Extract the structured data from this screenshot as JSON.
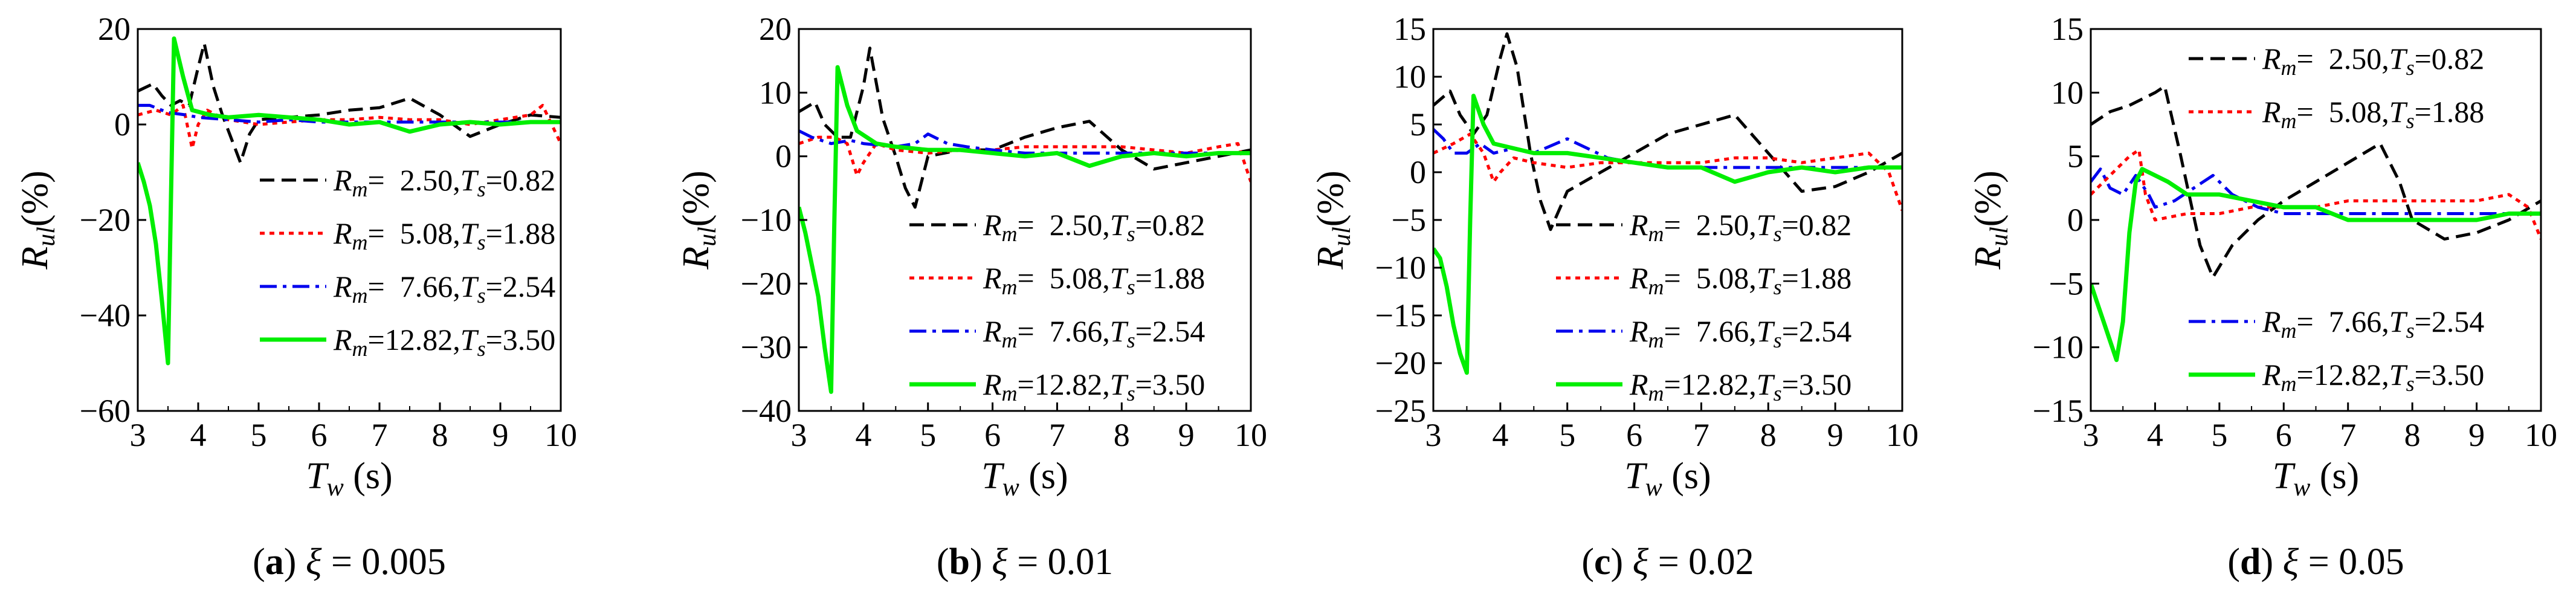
{
  "chart_data": [
    {
      "type": "line",
      "panel_label": "a",
      "caption": "ξ = 0.005",
      "xlabel": "Tw (s)",
      "ylabel": "Rul(%)",
      "xlim": [
        3,
        10
      ],
      "ylim": [
        -60,
        20
      ],
      "xticks": [
        3,
        4,
        5,
        6,
        7,
        8,
        9,
        10
      ],
      "yticks": [
        20,
        0,
        -20,
        -40,
        -60
      ],
      "legend_position": "lower-right",
      "series": [
        {
          "name": "Rm= 2.50,Ts=0.82",
          "legend": {
            "rm": "2.50",
            "ts": "0.82"
          },
          "color": "#000000",
          "style": "dash",
          "x": [
            3,
            3.25,
            3.4,
            3.55,
            3.7,
            3.85,
            4.0,
            4.1,
            4.25,
            4.4,
            4.55,
            4.7,
            4.85,
            5.0,
            5.5,
            6.0,
            6.5,
            7.0,
            7.5,
            8.0,
            8.5,
            9.0,
            9.5,
            10
          ],
          "y": [
            7,
            8.5,
            6,
            4,
            5,
            4,
            12,
            17,
            8,
            2,
            -3,
            -8,
            -2,
            1,
            1.5,
            2,
            3,
            3.5,
            5.5,
            2,
            -2.5,
            0,
            2,
            1.5
          ]
        },
        {
          "name": "Rm= 5.08,Ts=1.88",
          "legend": {
            "rm": "5.08",
            "ts": "1.88"
          },
          "color": "#ff0000",
          "style": "dot",
          "x": [
            3,
            3.3,
            3.55,
            3.75,
            3.9,
            4.0,
            4.15,
            4.3,
            4.5,
            5.0,
            5.5,
            6.0,
            6.5,
            7.0,
            7.5,
            8.0,
            8.5,
            9.0,
            9.5,
            9.7,
            10
          ],
          "y": [
            2,
            3,
            2,
            4,
            -5,
            0,
            3,
            2,
            1,
            0,
            0.5,
            1,
            1,
            1.5,
            1,
            1,
            0,
            1,
            2,
            4,
            -4
          ]
        },
        {
          "name": "Rm= 7.66,Ts=2.54",
          "legend": {
            "rm": "7.66",
            "ts": "2.54"
          },
          "color": "#0000ee",
          "style": "dashdot",
          "x": [
            3,
            3.2,
            3.5,
            3.8,
            4.0,
            4.5,
            5.0,
            5.5,
            6.0,
            7.0,
            8.0,
            9.0,
            10
          ],
          "y": [
            4,
            4,
            2.5,
            2,
            1.5,
            1,
            0.5,
            1,
            0.5,
            0.5,
            0.5,
            0.5,
            0.5
          ]
        },
        {
          "name": "Rm=12.82,Ts=3.50",
          "legend": {
            "rm": "12.82",
            "ts": "3.50"
          },
          "color": "#00ee00",
          "style": "solid",
          "x": [
            3,
            3.1,
            3.2,
            3.3,
            3.4,
            3.5,
            3.55,
            3.6,
            3.75,
            3.9,
            4.2,
            4.5,
            5.0,
            5.5,
            6.0,
            6.5,
            7.0,
            7.5,
            8.0,
            8.5,
            9.0,
            9.5,
            10
          ],
          "y": [
            -8,
            -12,
            -17,
            -25,
            -37,
            -50,
            -15,
            18,
            10,
            3,
            2,
            1.5,
            2,
            1.5,
            1,
            0,
            0.5,
            -1.5,
            0,
            0.5,
            0,
            0.5,
            0.5
          ]
        }
      ]
    },
    {
      "type": "line",
      "panel_label": "b",
      "caption": "ξ = 0.01",
      "xlabel": "Tw (s)",
      "ylabel": "Rul(%)",
      "xlim": [
        3,
        10
      ],
      "ylim": [
        -40,
        20
      ],
      "xticks": [
        3,
        4,
        5,
        6,
        7,
        8,
        9,
        10
      ],
      "yticks": [
        20,
        10,
        0,
        -10,
        -20,
        -30,
        -40
      ],
      "legend_position": "lower-right",
      "series": [
        {
          "name": "Rm= 2.50,Ts=0.82",
          "legend": {
            "rm": "2.50",
            "ts": "0.82"
          },
          "color": "#000000",
          "style": "dash",
          "x": [
            3,
            3.25,
            3.4,
            3.6,
            3.8,
            4.0,
            4.1,
            4.3,
            4.5,
            4.65,
            4.8,
            5.0,
            5.5,
            6.0,
            6.5,
            7.0,
            7.5,
            8.0,
            8.5,
            9.0,
            9.5,
            10
          ],
          "y": [
            7,
            8.5,
            5,
            3,
            3,
            11,
            17,
            6,
            0,
            -5,
            -8,
            0,
            1,
            1,
            3,
            4.5,
            5.5,
            1,
            -2,
            -1,
            0,
            1
          ]
        },
        {
          "name": "Rm= 5.08,Ts=1.88",
          "legend": {
            "rm": "5.08",
            "ts": "1.88"
          },
          "color": "#ff0000",
          "style": "dot",
          "x": [
            3,
            3.3,
            3.55,
            3.75,
            3.9,
            4.0,
            4.2,
            4.5,
            5.0,
            5.5,
            6.0,
            6.5,
            7.0,
            7.5,
            8.0,
            8.5,
            9.0,
            9.5,
            9.8,
            10
          ],
          "y": [
            2,
            3,
            3,
            2,
            -3,
            -1,
            2,
            1,
            0.5,
            1,
            1,
            1.5,
            1.5,
            1.5,
            1.5,
            1,
            0.5,
            1.5,
            2,
            -4
          ]
        },
        {
          "name": "Rm= 7.66,Ts=2.54",
          "legend": {
            "rm": "7.66",
            "ts": "2.54"
          },
          "color": "#0000ee",
          "style": "dashdot",
          "x": [
            3,
            3.2,
            3.5,
            3.8,
            4.0,
            4.5,
            4.8,
            5.0,
            5.3,
            5.6,
            6.0,
            6.5,
            7.0,
            8.0,
            9.0,
            10
          ],
          "y": [
            4,
            3,
            2,
            2.5,
            2,
            1.5,
            2,
            3.5,
            2,
            1.5,
            1,
            0.5,
            0.5,
            0.5,
            0.5,
            0.5
          ]
        },
        {
          "name": "Rm=12.82,Ts=3.50",
          "legend": {
            "rm": "12.82",
            "ts": "3.50"
          },
          "color": "#00ee00",
          "style": "solid",
          "x": [
            3,
            3.1,
            3.2,
            3.3,
            3.4,
            3.5,
            3.55,
            3.6,
            3.75,
            3.9,
            4.2,
            4.5,
            5.0,
            5.5,
            6.0,
            6.5,
            7.0,
            7.5,
            8.0,
            8.5,
            9.0,
            9.5,
            10
          ],
          "y": [
            -8,
            -12,
            -17,
            -22,
            -30,
            -37,
            -10,
            14,
            8,
            4,
            2,
            1.5,
            1,
            1,
            0.5,
            0,
            0.5,
            -1.5,
            0,
            0.5,
            0,
            0.5,
            0.5
          ]
        }
      ]
    },
    {
      "type": "line",
      "panel_label": "c",
      "caption": "ξ = 0.02",
      "xlabel": "Tw (s)",
      "ylabel": "Rul(%)",
      "xlim": [
        3,
        10
      ],
      "ylim": [
        -25,
        15
      ],
      "xticks": [
        3,
        4,
        5,
        6,
        7,
        8,
        9,
        10
      ],
      "yticks": [
        15,
        10,
        5,
        0,
        -5,
        -10,
        -15,
        -20,
        -25
      ],
      "legend_position": "lower-right",
      "series": [
        {
          "name": "Rm= 2.50,Ts=0.82",
          "legend": {
            "rm": "2.50",
            "ts": "0.82"
          },
          "color": "#000000",
          "style": "dash",
          "x": [
            3,
            3.25,
            3.4,
            3.6,
            3.8,
            4.0,
            4.1,
            4.25,
            4.45,
            4.6,
            4.75,
            5.0,
            5.5,
            6.0,
            6.5,
            7.0,
            7.5,
            8.0,
            8.5,
            9.0,
            9.5,
            10
          ],
          "y": [
            7,
            8.5,
            6,
            4,
            6,
            12,
            14.5,
            11,
            2,
            -3,
            -6,
            -2,
            0,
            2,
            4,
            5,
            6,
            2,
            -2,
            -1.5,
            0,
            2
          ]
        },
        {
          "name": "Rm= 5.08,Ts=1.88",
          "legend": {
            "rm": "5.08",
            "ts": "1.88"
          },
          "color": "#ff0000",
          "style": "dot",
          "x": [
            3,
            3.3,
            3.55,
            3.75,
            3.9,
            4.0,
            4.2,
            4.5,
            5.0,
            5.5,
            6.0,
            6.5,
            7.0,
            7.5,
            8.0,
            8.5,
            9.0,
            9.5,
            9.8,
            10
          ],
          "y": [
            2,
            3,
            4,
            2,
            -1,
            0,
            1.5,
            1,
            0.5,
            1,
            1,
            1,
            1,
            1.5,
            1.5,
            1,
            1.5,
            2,
            0,
            -4
          ]
        },
        {
          "name": "Rm= 7.66,Ts=2.54",
          "legend": {
            "rm": "7.66",
            "ts": "2.54"
          },
          "color": "#0000ee",
          "style": "dashdot",
          "x": [
            3,
            3.15,
            3.3,
            3.5,
            3.7,
            3.9,
            4.2,
            4.5,
            5.0,
            5.3,
            5.6,
            6.0,
            6.5,
            7.0,
            8.0,
            9.0,
            10
          ],
          "y": [
            4.5,
            3.5,
            2,
            2,
            3,
            2,
            2.5,
            2,
            3.5,
            2.5,
            1.5,
            1,
            0.5,
            0.5,
            0.5,
            0.5,
            0.5
          ]
        },
        {
          "name": "Rm=12.82,Ts=3.50",
          "legend": {
            "rm": "12.82",
            "ts": "3.50"
          },
          "color": "#00ee00",
          "style": "solid",
          "x": [
            3,
            3.1,
            3.2,
            3.3,
            3.4,
            3.5,
            3.55,
            3.6,
            3.75,
            3.9,
            4.2,
            4.5,
            5.0,
            5.5,
            6.0,
            6.5,
            7.0,
            7.5,
            8.0,
            8.5,
            9.0,
            9.5,
            10
          ],
          "y": [
            -8,
            -9,
            -12,
            -16,
            -19,
            -21,
            -5,
            8,
            5,
            3,
            2.5,
            2,
            2,
            1.5,
            1,
            0.5,
            0.5,
            -1,
            0,
            0.5,
            0,
            0.5,
            0.5
          ]
        }
      ]
    },
    {
      "type": "line",
      "panel_label": "d",
      "caption": "ξ = 0.05",
      "xlabel": "Tw (s)",
      "ylabel": "Rul(%)",
      "xlim": [
        3,
        10
      ],
      "ylim": [
        -15,
        15
      ],
      "xticks": [
        3,
        4,
        5,
        6,
        7,
        8,
        9,
        10
      ],
      "yticks": [
        15,
        10,
        5,
        0,
        -5,
        -10,
        -15
      ],
      "legend_position": "split: top-right and bottom-right",
      "series": [
        {
          "name": "Rm= 2.50,Ts=0.82",
          "legend": {
            "rm": "2.50",
            "ts": "0.82"
          },
          "color": "#000000",
          "style": "dash",
          "x": [
            3,
            3.3,
            3.6,
            3.8,
            4.0,
            4.15,
            4.4,
            4.7,
            4.9,
            5.2,
            5.6,
            6.0,
            6.5,
            7.0,
            7.5,
            7.8,
            8.0,
            8.5,
            9.0,
            9.5,
            10
          ],
          "y": [
            7.5,
            8.5,
            9,
            9.5,
            10,
            10.5,
            5,
            -2,
            -4.5,
            -2,
            0,
            1.5,
            3,
            4.5,
            6,
            3,
            0,
            -1.5,
            -1,
            0,
            1.5
          ]
        },
        {
          "name": "Rm= 5.08,Ts=1.88",
          "legend": {
            "rm": "5.08",
            "ts": "1.88"
          },
          "color": "#ff0000",
          "style": "dot",
          "x": [
            3,
            3.2,
            3.4,
            3.6,
            3.75,
            3.85,
            4.0,
            4.5,
            5.0,
            5.5,
            6.0,
            6.5,
            7.0,
            7.5,
            8.0,
            8.5,
            9.0,
            9.5,
            9.8,
            10
          ],
          "y": [
            2,
            3,
            4,
            5,
            5.5,
            2,
            0,
            0.5,
            0.5,
            1,
            1,
            1,
            1.5,
            1.5,
            1.5,
            1.5,
            1.5,
            2,
            1,
            -1.5
          ]
        },
        {
          "name": "Rm= 7.66,Ts=2.54",
          "legend": {
            "rm": "7.66",
            "ts": "2.54"
          },
          "color": "#0000ee",
          "style": "dashdot",
          "x": [
            3,
            3.15,
            3.3,
            3.5,
            3.7,
            3.9,
            4.0,
            4.3,
            4.6,
            4.9,
            5.2,
            5.6,
            6.0,
            7.0,
            8.0,
            9.0,
            10
          ],
          "y": [
            3,
            4,
            2.5,
            2,
            3.5,
            2,
            1,
            1.5,
            2.5,
            3.5,
            2,
            1,
            0.5,
            0.5,
            0.5,
            0.5,
            0.5
          ]
        },
        {
          "name": "Rm=12.82,Ts=3.50",
          "legend": {
            "rm": "12.82",
            "ts": "3.50"
          },
          "color": "#00ee00",
          "style": "solid",
          "x": [
            3,
            3.1,
            3.2,
            3.3,
            3.4,
            3.5,
            3.6,
            3.7,
            3.8,
            4.0,
            4.2,
            4.5,
            5.0,
            5.5,
            6.0,
            6.5,
            7.0,
            7.5,
            8.0,
            8.5,
            9.0,
            9.5,
            10
          ],
          "y": [
            -5,
            -6.5,
            -8,
            -9.5,
            -11,
            -8,
            -1,
            3,
            4,
            3.5,
            3,
            2,
            2,
            1.5,
            1,
            1,
            0,
            0,
            0,
            0,
            0,
            0.5,
            0.5
          ]
        }
      ]
    }
  ]
}
